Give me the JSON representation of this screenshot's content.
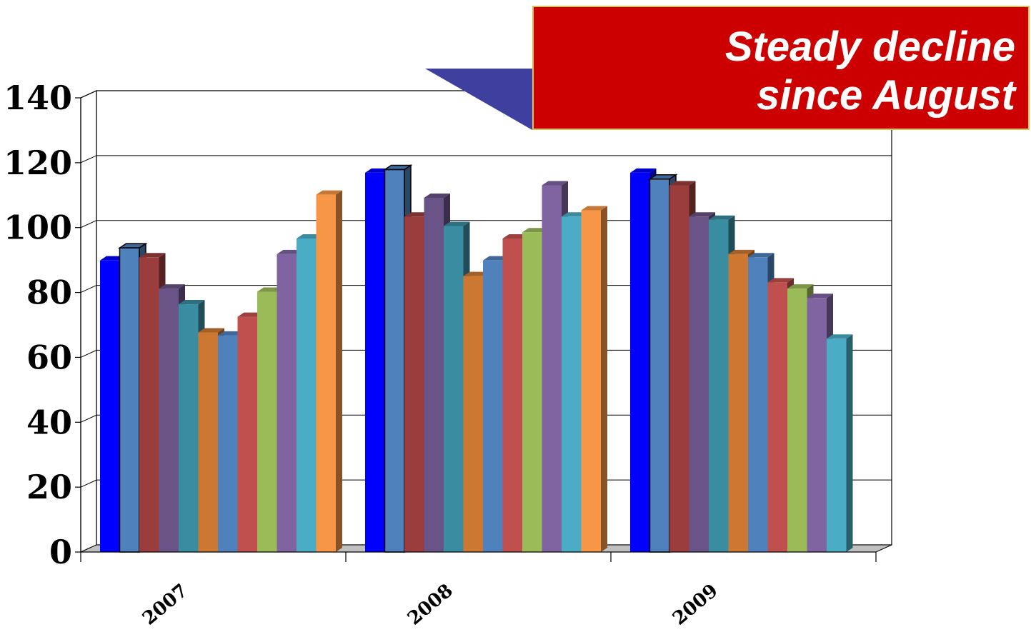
{
  "chart_data": {
    "type": "bar",
    "title": "",
    "xlabel": "",
    "ylabel": "",
    "ylim": [
      0,
      140
    ],
    "yticks": [
      "0",
      "20",
      "40",
      "60",
      "80",
      "100",
      "120",
      "140"
    ],
    "categories": [
      "2007",
      "2008",
      "2009"
    ],
    "series": [
      {
        "color": "#0000ff",
        "values": [
          92,
          120,
          120
        ]
      },
      {
        "color": "#4f81bd",
        "values": [
          96,
          121,
          118
        ]
      },
      {
        "color": "#9b3d3d",
        "values": [
          93,
          106,
          116
        ]
      },
      {
        "color": "#6a5386",
        "values": [
          83,
          112,
          106
        ]
      },
      {
        "color": "#3a8ca0",
        "values": [
          78,
          103,
          105
        ]
      },
      {
        "color": "#cc7833",
        "values": [
          69,
          87,
          94
        ]
      },
      {
        "color": "#4f81bd",
        "values": [
          68,
          92,
          93
        ]
      },
      {
        "color": "#c0504d",
        "values": [
          74,
          99,
          85
        ]
      },
      {
        "color": "#9bbb59",
        "values": [
          82,
          101,
          83
        ]
      },
      {
        "color": "#8064a2",
        "values": [
          94,
          116,
          80
        ]
      },
      {
        "color": "#4bacc6",
        "values": [
          99,
          106,
          67
        ]
      },
      {
        "color": "#f79646",
        "values": [
          113,
          108,
          null
        ]
      }
    ],
    "grid": true,
    "legend": "none"
  },
  "callout": {
    "line1": "Steady decline",
    "line2": "since August",
    "background": "#cc0000",
    "pointer_color": "#3f3f9f"
  }
}
